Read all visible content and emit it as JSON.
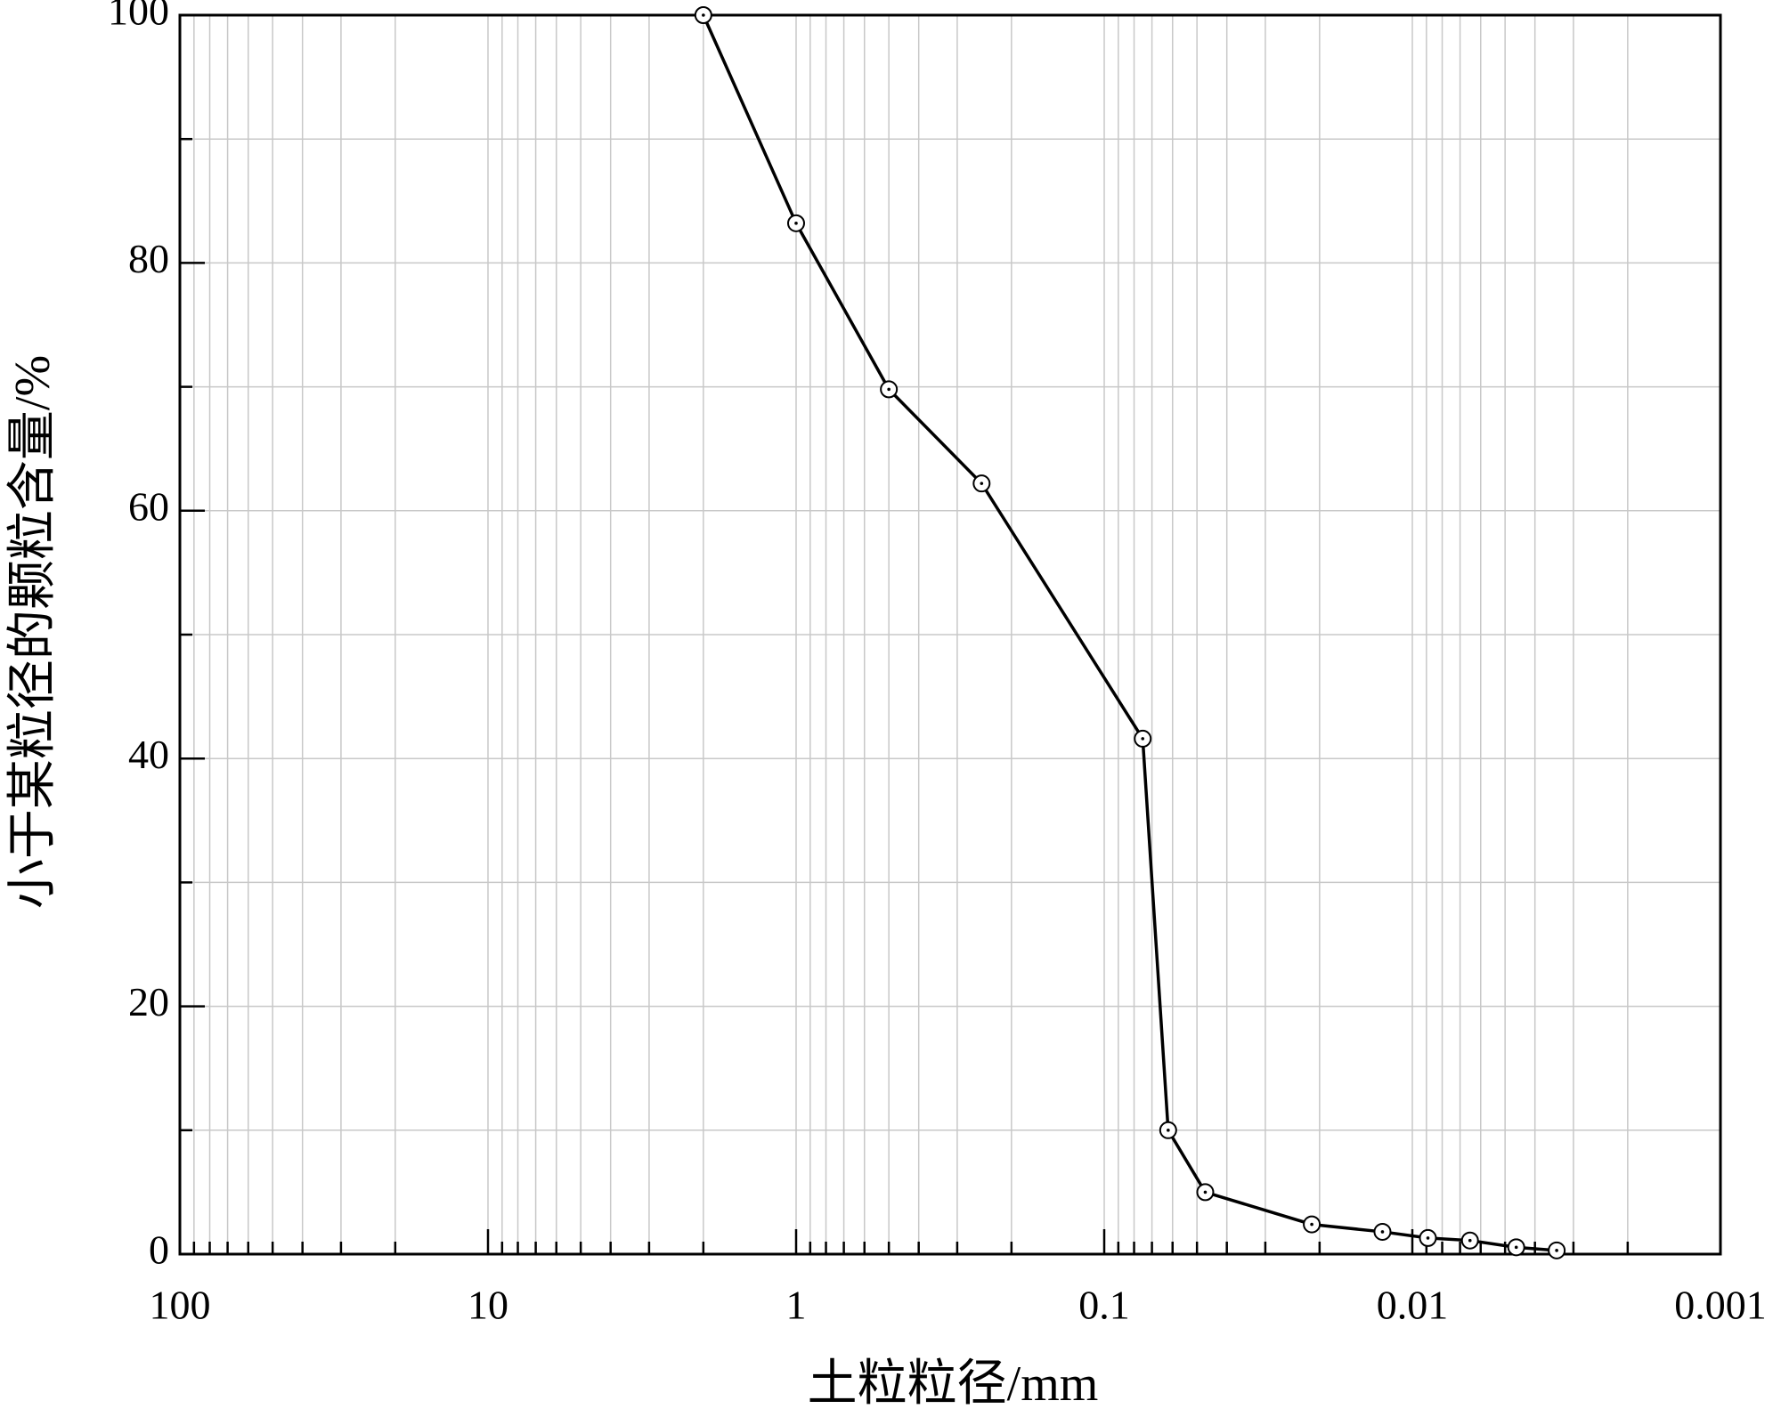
{
  "chart_data": {
    "type": "line",
    "x_label": "土粒粒径/mm",
    "y_label": "小于某粒径的颗粒含量/%",
    "x": [
      2,
      1,
      0.5,
      0.25,
      0.075,
      0.062,
      0.047,
      0.0212,
      0.0125,
      0.0089,
      0.0065,
      0.0046,
      0.0034
    ],
    "series": [
      {
        "color": "#000000",
        "values": [
          100,
          83.2,
          69.8,
          62.2,
          41.6,
          10.0,
          5.0,
          2.4,
          1.8,
          1.3,
          1.1,
          0.55,
          0.3
        ]
      }
    ],
    "log_x": true,
    "xlim": [
      100,
      0.001
    ],
    "xticks": [
      100,
      10,
      1,
      0.1,
      0.01,
      0.001
    ],
    "xminorticks": [
      90,
      80,
      70,
      60,
      50,
      40,
      30,
      20,
      9,
      8,
      7,
      6,
      5,
      4,
      3,
      2,
      0.9,
      0.8,
      0.7,
      0.6,
      0.5,
      0.4,
      0.3,
      0.2,
      0.09,
      0.08,
      0.07,
      0.06,
      0.05,
      0.04,
      0.03,
      0.02,
      0.009,
      0.008,
      0.007,
      0.006,
      0.005,
      0.004,
      0.003,
      0.002
    ],
    "ylim": [
      0,
      100
    ],
    "yticks": [
      0,
      20,
      40,
      60,
      80,
      100
    ],
    "yminorticks": [
      10,
      30,
      50,
      70,
      90
    ],
    "grid": true
  }
}
